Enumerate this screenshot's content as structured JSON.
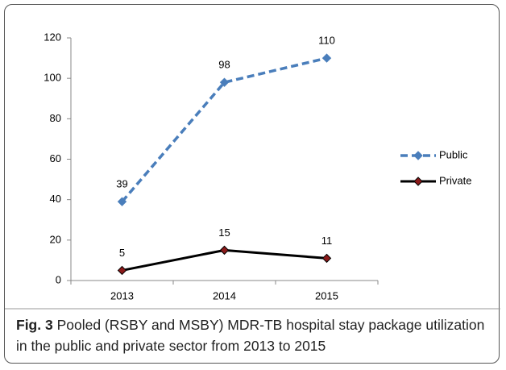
{
  "chart_data": {
    "type": "line",
    "caption_label": "Fig. 3",
    "caption": "Pooled (RSBY and MSBY) MDR-TB hospital stay package utilization in the public and private sector from 2013 to 2015",
    "categories": [
      "2013",
      "2014",
      "2015"
    ],
    "series": [
      {
        "name": "Public",
        "color": "#4a7ebb",
        "values": [
          39,
          98,
          110
        ]
      },
      {
        "name": "Private",
        "color": "#000000",
        "values": [
          5,
          15,
          11
        ]
      }
    ],
    "ylim": [
      0,
      120
    ],
    "yticks": [
      0,
      20,
      40,
      60,
      80,
      100,
      120
    ],
    "grid": false,
    "legend": "right"
  }
}
